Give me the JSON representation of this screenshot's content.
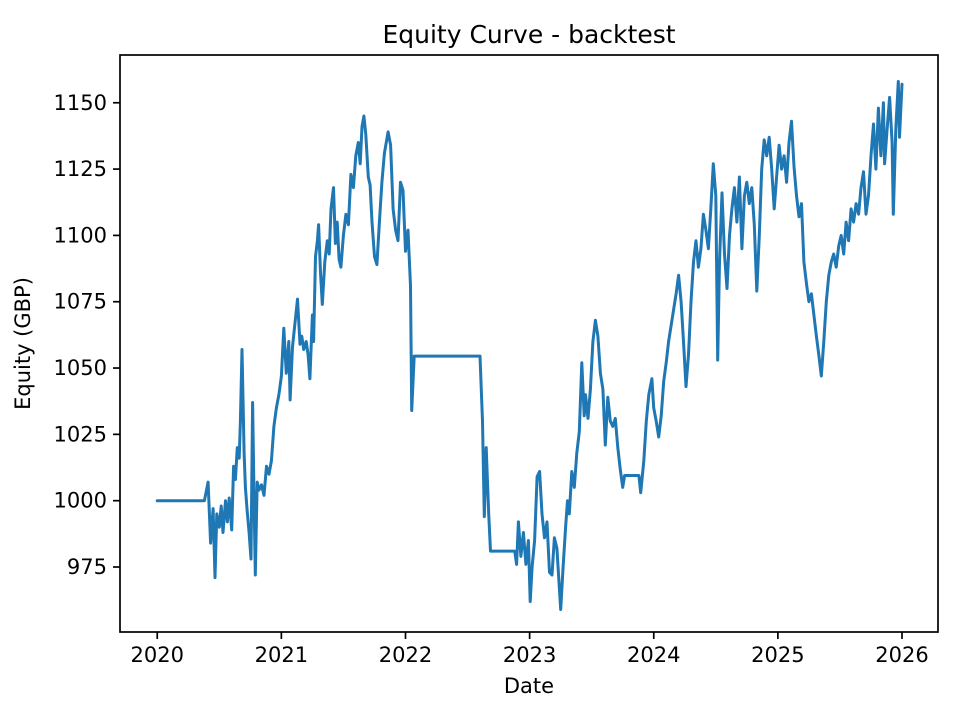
{
  "figure": {
    "background": "#ffffff",
    "title": "Equity Curve - backtest"
  },
  "chart_data": {
    "type": "line",
    "title": "Equity Curve - backtest",
    "xlabel": "Date",
    "ylabel": "Equity (GBP)",
    "xlim": [
      2019.7,
      2026.29
    ],
    "ylim": [
      950.5,
      1168.0
    ],
    "x_ticks": [
      2020,
      2021,
      2022,
      2023,
      2024,
      2025,
      2026
    ],
    "y_ticks": [
      975,
      1000,
      1025,
      1050,
      1075,
      1100,
      1125,
      1150
    ],
    "grid": false,
    "legend": null,
    "line_color": "#1f77b4",
    "axis_color": "#000000",
    "series": [
      {
        "name": "equity",
        "points": [
          [
            2020.0,
            1000
          ],
          [
            2020.38,
            1000
          ],
          [
            2020.41,
            1007
          ],
          [
            2020.43,
            984
          ],
          [
            2020.45,
            997
          ],
          [
            2020.465,
            971
          ],
          [
            2020.48,
            995
          ],
          [
            2020.5,
            990
          ],
          [
            2020.515,
            998
          ],
          [
            2020.53,
            988
          ],
          [
            2020.55,
            1000
          ],
          [
            2020.565,
            992
          ],
          [
            2020.58,
            1001
          ],
          [
            2020.6,
            989
          ],
          [
            2020.615,
            1013
          ],
          [
            2020.63,
            1008
          ],
          [
            2020.645,
            1020
          ],
          [
            2020.66,
            1016
          ],
          [
            2020.67,
            1030
          ],
          [
            2020.683,
            1057
          ],
          [
            2020.7,
            1018
          ],
          [
            2020.71,
            1005
          ],
          [
            2020.725,
            996
          ],
          [
            2020.74,
            988
          ],
          [
            2020.755,
            978
          ],
          [
            2020.768,
            1037
          ],
          [
            2020.78,
            1000
          ],
          [
            2020.79,
            972
          ],
          [
            2020.805,
            1007
          ],
          [
            2020.82,
            1004
          ],
          [
            2020.84,
            1006
          ],
          [
            2020.86,
            1002
          ],
          [
            2020.88,
            1013
          ],
          [
            2020.9,
            1010
          ],
          [
            2020.92,
            1015
          ],
          [
            2020.94,
            1028
          ],
          [
            2020.96,
            1035
          ],
          [
            2020.98,
            1040
          ],
          [
            2021.0,
            1047
          ],
          [
            2021.02,
            1065
          ],
          [
            2021.04,
            1048
          ],
          [
            2021.06,
            1060
          ],
          [
            2021.07,
            1038
          ],
          [
            2021.09,
            1058
          ],
          [
            2021.11,
            1067
          ],
          [
            2021.13,
            1076
          ],
          [
            2021.15,
            1059
          ],
          [
            2021.165,
            1062
          ],
          [
            2021.18,
            1057
          ],
          [
            2021.2,
            1060
          ],
          [
            2021.215,
            1055
          ],
          [
            2021.23,
            1046
          ],
          [
            2021.25,
            1070
          ],
          [
            2021.26,
            1060
          ],
          [
            2021.275,
            1092
          ],
          [
            2021.29,
            1098
          ],
          [
            2021.3,
            1104
          ],
          [
            2021.315,
            1086
          ],
          [
            2021.33,
            1074
          ],
          [
            2021.35,
            1090
          ],
          [
            2021.37,
            1098
          ],
          [
            2021.385,
            1093
          ],
          [
            2021.4,
            1110
          ],
          [
            2021.42,
            1118
          ],
          [
            2021.435,
            1097
          ],
          [
            2021.45,
            1105
          ],
          [
            2021.465,
            1091
          ],
          [
            2021.48,
            1088
          ],
          [
            2021.5,
            1100
          ],
          [
            2021.52,
            1108
          ],
          [
            2021.54,
            1104
          ],
          [
            2021.56,
            1123
          ],
          [
            2021.58,
            1118
          ],
          [
            2021.6,
            1130
          ],
          [
            2021.62,
            1135
          ],
          [
            2021.635,
            1127
          ],
          [
            2021.65,
            1141
          ],
          [
            2021.665,
            1145
          ],
          [
            2021.68,
            1138
          ],
          [
            2021.7,
            1122
          ],
          [
            2021.715,
            1119
          ],
          [
            2021.73,
            1105
          ],
          [
            2021.75,
            1092
          ],
          [
            2021.77,
            1089
          ],
          [
            2021.79,
            1105
          ],
          [
            2021.81,
            1120
          ],
          [
            2021.83,
            1131
          ],
          [
            2021.86,
            1139
          ],
          [
            2021.88,
            1134
          ],
          [
            2021.9,
            1110
          ],
          [
            2021.92,
            1102
          ],
          [
            2021.94,
            1098
          ],
          [
            2021.96,
            1120
          ],
          [
            2021.98,
            1117
          ],
          [
            2022.0,
            1094
          ],
          [
            2022.02,
            1102
          ],
          [
            2022.04,
            1081
          ],
          [
            2022.05,
            1034
          ],
          [
            2022.07,
            1054.5
          ],
          [
            2022.6,
            1054.5
          ],
          [
            2022.62,
            1030
          ],
          [
            2022.635,
            994
          ],
          [
            2022.65,
            1020
          ],
          [
            2022.67,
            995
          ],
          [
            2022.685,
            981
          ],
          [
            2022.88,
            981
          ],
          [
            2022.895,
            976
          ],
          [
            2022.91,
            992
          ],
          [
            2022.93,
            979
          ],
          [
            2022.95,
            988
          ],
          [
            2022.97,
            976
          ],
          [
            2022.99,
            985
          ],
          [
            2023.005,
            962
          ],
          [
            2023.02,
            975
          ],
          [
            2023.04,
            985
          ],
          [
            2023.06,
            1009
          ],
          [
            2023.08,
            1011
          ],
          [
            2023.1,
            995
          ],
          [
            2023.12,
            986
          ],
          [
            2023.14,
            992
          ],
          [
            2023.16,
            973
          ],
          [
            2023.18,
            972
          ],
          [
            2023.2,
            986
          ],
          [
            2023.22,
            982
          ],
          [
            2023.25,
            959
          ],
          [
            2023.27,
            975
          ],
          [
            2023.29,
            990
          ],
          [
            2023.305,
            1000
          ],
          [
            2023.32,
            995
          ],
          [
            2023.34,
            1011
          ],
          [
            2023.36,
            1005
          ],
          [
            2023.38,
            1018
          ],
          [
            2023.4,
            1026
          ],
          [
            2023.42,
            1052
          ],
          [
            2023.44,
            1032
          ],
          [
            2023.45,
            1040
          ],
          [
            2023.47,
            1031
          ],
          [
            2023.49,
            1042
          ],
          [
            2023.51,
            1060
          ],
          [
            2023.53,
            1068
          ],
          [
            2023.55,
            1062
          ],
          [
            2023.57,
            1048
          ],
          [
            2023.59,
            1042
          ],
          [
            2023.61,
            1021
          ],
          [
            2023.63,
            1039
          ],
          [
            2023.65,
            1030
          ],
          [
            2023.67,
            1028
          ],
          [
            2023.69,
            1031
          ],
          [
            2023.71,
            1020
          ],
          [
            2023.73,
            1012
          ],
          [
            2023.75,
            1005
          ],
          [
            2023.765,
            1009.5
          ],
          [
            2023.88,
            1009.5
          ],
          [
            2023.895,
            1003
          ],
          [
            2023.92,
            1015
          ],
          [
            2023.94,
            1030
          ],
          [
            2023.96,
            1040
          ],
          [
            2023.985,
            1046
          ],
          [
            2024.0,
            1035
          ],
          [
            2024.02,
            1030
          ],
          [
            2024.04,
            1024
          ],
          [
            2024.06,
            1032
          ],
          [
            2024.08,
            1045
          ],
          [
            2024.1,
            1052
          ],
          [
            2024.12,
            1060
          ],
          [
            2024.14,
            1066
          ],
          [
            2024.16,
            1072
          ],
          [
            2024.18,
            1078
          ],
          [
            2024.2,
            1085
          ],
          [
            2024.22,
            1075
          ],
          [
            2024.24,
            1060
          ],
          [
            2024.26,
            1043
          ],
          [
            2024.28,
            1055
          ],
          [
            2024.3,
            1075
          ],
          [
            2024.32,
            1090
          ],
          [
            2024.34,
            1098
          ],
          [
            2024.36,
            1088
          ],
          [
            2024.38,
            1095
          ],
          [
            2024.4,
            1108
          ],
          [
            2024.42,
            1102
          ],
          [
            2024.44,
            1095
          ],
          [
            2024.46,
            1110
          ],
          [
            2024.48,
            1127
          ],
          [
            2024.5,
            1115
          ],
          [
            2024.515,
            1053
          ],
          [
            2024.53,
            1090
          ],
          [
            2024.55,
            1116
          ],
          [
            2024.57,
            1093
          ],
          [
            2024.59,
            1080
          ],
          [
            2024.61,
            1100
          ],
          [
            2024.63,
            1110
          ],
          [
            2024.65,
            1118
          ],
          [
            2024.67,
            1105
          ],
          [
            2024.69,
            1122
          ],
          [
            2024.71,
            1095
          ],
          [
            2024.73,
            1115
          ],
          [
            2024.75,
            1120
          ],
          [
            2024.77,
            1112
          ],
          [
            2024.79,
            1118
          ],
          [
            2024.81,
            1104
          ],
          [
            2024.83,
            1079
          ],
          [
            2024.85,
            1100
          ],
          [
            2024.87,
            1125
          ],
          [
            2024.89,
            1136
          ],
          [
            2024.91,
            1130
          ],
          [
            2024.93,
            1137
          ],
          [
            2024.95,
            1125
          ],
          [
            2024.97,
            1110
          ],
          [
            2024.99,
            1122
          ],
          [
            2025.01,
            1134
          ],
          [
            2025.03,
            1125
          ],
          [
            2025.05,
            1130
          ],
          [
            2025.07,
            1120
          ],
          [
            2025.09,
            1135
          ],
          [
            2025.11,
            1143
          ],
          [
            2025.13,
            1126
          ],
          [
            2025.15,
            1115
          ],
          [
            2025.17,
            1107
          ],
          [
            2025.19,
            1112
          ],
          [
            2025.21,
            1090
          ],
          [
            2025.23,
            1082
          ],
          [
            2025.25,
            1075
          ],
          [
            2025.27,
            1078
          ],
          [
            2025.29,
            1070
          ],
          [
            2025.31,
            1062
          ],
          [
            2025.33,
            1055
          ],
          [
            2025.35,
            1047
          ],
          [
            2025.37,
            1060
          ],
          [
            2025.39,
            1075
          ],
          [
            2025.41,
            1085
          ],
          [
            2025.43,
            1090
          ],
          [
            2025.45,
            1093
          ],
          [
            2025.47,
            1088
          ],
          [
            2025.49,
            1096
          ],
          [
            2025.51,
            1100
          ],
          [
            2025.53,
            1093
          ],
          [
            2025.55,
            1105
          ],
          [
            2025.57,
            1098
          ],
          [
            2025.59,
            1110
          ],
          [
            2025.61,
            1105
          ],
          [
            2025.63,
            1112
          ],
          [
            2025.65,
            1108
          ],
          [
            2025.67,
            1118
          ],
          [
            2025.69,
            1124
          ],
          [
            2025.71,
            1108
          ],
          [
            2025.73,
            1115
          ],
          [
            2025.75,
            1130
          ],
          [
            2025.77,
            1142
          ],
          [
            2025.79,
            1125
          ],
          [
            2025.81,
            1148
          ],
          [
            2025.83,
            1130
          ],
          [
            2025.85,
            1150
          ],
          [
            2025.86,
            1127
          ],
          [
            2025.88,
            1140
          ],
          [
            2025.9,
            1152
          ],
          [
            2025.92,
            1135
          ],
          [
            2025.93,
            1108
          ],
          [
            2025.95,
            1140
          ],
          [
            2025.97,
            1158
          ],
          [
            2025.98,
            1137
          ],
          [
            2026.0,
            1157
          ]
        ]
      }
    ]
  }
}
